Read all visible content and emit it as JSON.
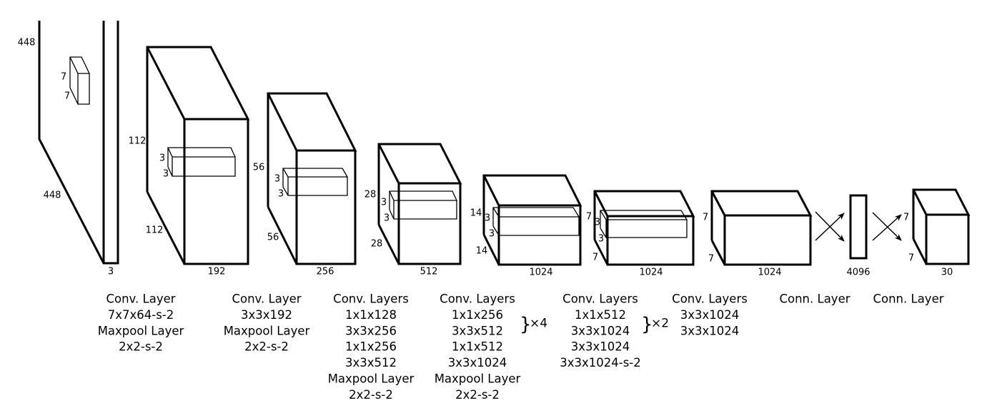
{
  "input": {
    "height": "448",
    "width": "448",
    "channels": "3",
    "kernel": [
      "7",
      "7"
    ]
  },
  "layers": [
    {
      "height": "112",
      "width": "112",
      "depth": "192",
      "kernel": [
        "3",
        "3"
      ]
    },
    {
      "height": "56",
      "width": "56",
      "depth": "256",
      "kernel": [
        "3",
        "3"
      ]
    },
    {
      "height": "28",
      "width": "28",
      "depth": "512",
      "kernel": [
        "3",
        "3"
      ]
    },
    {
      "height": "14",
      "width": "14",
      "depth": "1024",
      "kernel": [
        "3",
        "3"
      ]
    },
    {
      "height": "7",
      "width": "7",
      "depth": "1024",
      "kernel": [
        "3",
        "3"
      ]
    },
    {
      "height": "7",
      "width": "7",
      "depth": "1024"
    },
    {
      "depth": "4096"
    },
    {
      "height": "7",
      "width": "7",
      "depth": "30"
    }
  ],
  "captions": [
    {
      "lines": [
        "Conv. Layer",
        "7x7x64-s-2",
        "Maxpool Layer",
        "2x2-s-2"
      ]
    },
    {
      "lines": [
        "Conv. Layer",
        "3x3x192",
        "Maxpool Layer",
        "2x2-s-2"
      ]
    },
    {
      "lines": [
        "Conv. Layers",
        "1x1x128",
        "3x3x256",
        "1x1x256",
        "3x3x512",
        "Maxpool Layer",
        "2x2-s-2"
      ]
    },
    {
      "lines": [
        "Conv. Layers",
        "1x1x256",
        "3x3x512",
        "1x1x512",
        "3x3x1024",
        "Maxpool Layer",
        "2x2-s-2"
      ],
      "repeat": "×4"
    },
    {
      "lines": [
        "Conv. Layers",
        "1x1x512",
        "3x3x1024",
        "3x3x1024",
        "3x3x1024-s-2"
      ],
      "repeat": "×2"
    },
    {
      "lines": [
        "Conv. Layers",
        "3x3x1024",
        "3x3x1024"
      ]
    },
    {
      "lines": [
        "Conn. Layer"
      ]
    },
    {
      "lines": [
        "Conn. Layer"
      ]
    }
  ]
}
